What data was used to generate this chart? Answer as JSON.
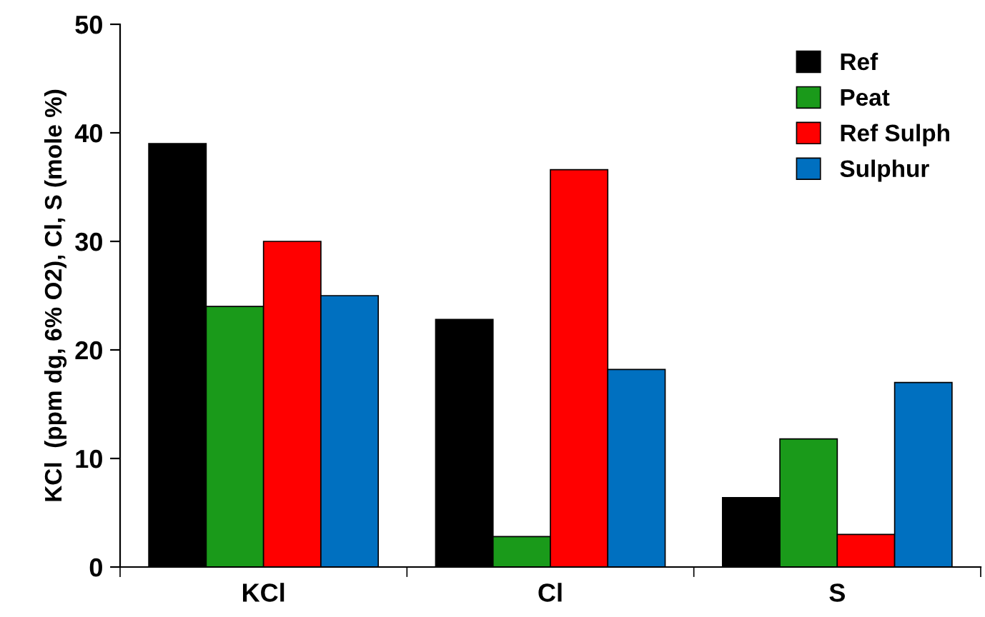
{
  "chart_data": {
    "type": "bar",
    "ylabel": "KCl  (ppm dg, 6% O2), Cl, S (mole %)",
    "categories": [
      "KCl",
      "Cl",
      "S"
    ],
    "series": [
      {
        "name": "Ref",
        "color": "#000000",
        "values": [
          39,
          22.8,
          6.4
        ]
      },
      {
        "name": "Peat",
        "color": "#1a9a1a",
        "values": [
          24,
          2.8,
          11.8
        ]
      },
      {
        "name": "Ref Sulph",
        "color": "#ff0000",
        "values": [
          30,
          36.6,
          3
        ]
      },
      {
        "name": "Sulphur",
        "color": "#0070c0",
        "values": [
          25,
          18.2,
          17
        ]
      }
    ],
    "ylim": [
      0,
      50
    ],
    "yticks": [
      0,
      10,
      20,
      30,
      40,
      50
    ],
    "grid": false,
    "legend": "top right"
  }
}
